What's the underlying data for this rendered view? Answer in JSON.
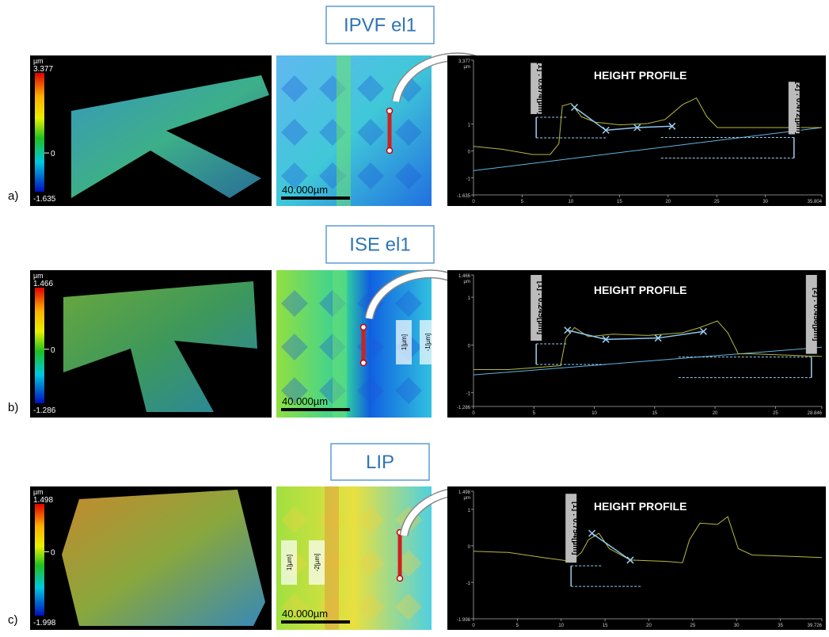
{
  "rows": [
    {
      "label": "a)",
      "title": "IPVF el1",
      "colorbar": {
        "unit": "µm",
        "max": "3.377",
        "zero": "0",
        "min": "-1.635"
      },
      "scale_bar": "40.000µm",
      "insets": [],
      "profile": {
        "title": "HEIGHT PROFILE",
        "y_unit": "µm",
        "yticks": [
          "3.377",
          "1",
          "0",
          "-1",
          "-1.635"
        ],
        "xticks": [
          "0",
          "5",
          "10",
          "15",
          "20",
          "25",
          "30",
          "35.804"
        ],
        "annotations": [
          "[1] : 0.674[µm]",
          "[2] : 0.472[µm]"
        ]
      }
    },
    {
      "label": "b)",
      "title": "ISE el1",
      "colorbar": {
        "unit": "µm",
        "max": "1.466",
        "zero": "0",
        "min": "-1.286"
      },
      "scale_bar": "40.000µm",
      "insets": [
        "1[µm]",
        "-1[µm]"
      ],
      "profile": {
        "title": "HEIGHT PROFILE",
        "y_unit": "µm",
        "yticks": [
          "1.466",
          "1",
          "0",
          "-1",
          "-1.286"
        ],
        "xticks": [
          "0",
          "5",
          "10",
          "15",
          "20",
          "25",
          "28.846"
        ],
        "annotations": [
          "[1] : 0.245[µm]",
          "[2] : 0.456[µm]"
        ]
      }
    },
    {
      "label": "c)",
      "title": "LIP",
      "colorbar": {
        "unit": "µm",
        "max": "1.498",
        "zero": "0",
        "min": "-1.998"
      },
      "scale_bar": "40.000µm",
      "insets": [
        "1[µm]",
        "-2[µm]"
      ],
      "profile": {
        "title": "HEIGHT PROFILE",
        "y_unit": "µm",
        "yticks": [
          "1.498",
          "1",
          "0",
          "-1",
          "-1.998"
        ],
        "xticks": [
          "0",
          "5",
          "10",
          "15",
          "20",
          "25",
          "30",
          "35",
          "39.726"
        ],
        "annotations": [
          "[1] : 0.754[µm]"
        ]
      }
    }
  ]
}
